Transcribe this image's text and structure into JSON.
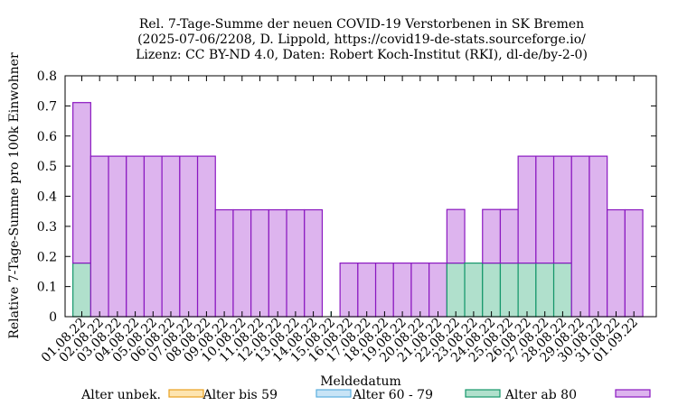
{
  "chart_data": {
    "type": "bar",
    "stacked": true,
    "title": [
      "Rel. 7-Tage-Summe der neuen COVID-19 Verstorbenen in SK Bremen",
      "(2025-07-06/2208, D. Lippold, https://covid19-de-stats.sourceforge.io/",
      "Lizenz: CC BY-ND 4.0, Daten: Robert Koch-Institut (RKI), dl-de/by-2-0)"
    ],
    "xlabel": "Meldedatum",
    "ylabel": "Relative 7-Tage-Summe pro 100k Einwohner",
    "ylim": [
      0,
      0.8
    ],
    "yticks": [
      "0",
      "0.1",
      "0.2",
      "0.3",
      "0.4",
      "0.5",
      "0.6",
      "0.7",
      "0.8"
    ],
    "grid": false,
    "legend_position": "bottom",
    "categories": [
      "01.08.22",
      "02.08.22",
      "03.08.22",
      "04.08.22",
      "05.08.22",
      "06.08.22",
      "07.08.22",
      "08.08.22",
      "09.08.22",
      "10.08.22",
      "11.08.22",
      "12.08.22",
      "13.08.22",
      "14.08.22",
      "15.08.22",
      "16.08.22",
      "17.08.22",
      "18.08.22",
      "19.08.22",
      "20.08.22",
      "21.08.22",
      "22.08.22",
      "23.08.22",
      "24.08.22",
      "25.08.22",
      "26.08.22",
      "27.08.22",
      "28.08.22",
      "29.08.22",
      "30.08.22",
      "31.08.22",
      "01.09.22"
    ],
    "series": [
      {
        "name": "Alter unbek.",
        "fill": "#fde4b0",
        "stroke": "#e8a020",
        "values": [
          0,
          0,
          0,
          0,
          0,
          0,
          0,
          0,
          0,
          0,
          0,
          0,
          0,
          0,
          0,
          0,
          0,
          0,
          0,
          0,
          0,
          0,
          0,
          0,
          0,
          0,
          0,
          0,
          0,
          0,
          0,
          0
        ]
      },
      {
        "name": "Alter bis 59",
        "fill": "#c8e4f6",
        "stroke": "#5aaede",
        "values": [
          0,
          0,
          0,
          0,
          0,
          0,
          0,
          0,
          0,
          0,
          0,
          0,
          0,
          0,
          0,
          0,
          0,
          0,
          0,
          0,
          0,
          0,
          0,
          0,
          0,
          0,
          0,
          0,
          0,
          0,
          0,
          0
        ]
      },
      {
        "name": "Alter 60 - 79",
        "fill": "#b0e0cc",
        "stroke": "#14966a",
        "values": [
          0.178,
          0,
          0,
          0,
          0,
          0,
          0,
          0,
          0,
          0,
          0,
          0,
          0,
          0,
          0,
          0,
          0,
          0,
          0,
          0,
          0,
          0.178,
          0.178,
          0.178,
          0.178,
          0.178,
          0.178,
          0.178,
          0,
          0,
          0,
          0
        ]
      },
      {
        "name": "Alter ab 80",
        "fill": "#ddb4ee",
        "stroke": "#8a18c0",
        "values": [
          0.533,
          0.533,
          0.533,
          0.533,
          0.533,
          0.533,
          0.533,
          0.533,
          0.355,
          0.355,
          0.355,
          0.355,
          0.355,
          0.355,
          0,
          0.178,
          0.178,
          0.178,
          0.178,
          0.178,
          0.178,
          0.178,
          0,
          0.178,
          0.178,
          0.355,
          0.355,
          0.355,
          0.533,
          0.533,
          0.355,
          0.355
        ]
      }
    ]
  }
}
